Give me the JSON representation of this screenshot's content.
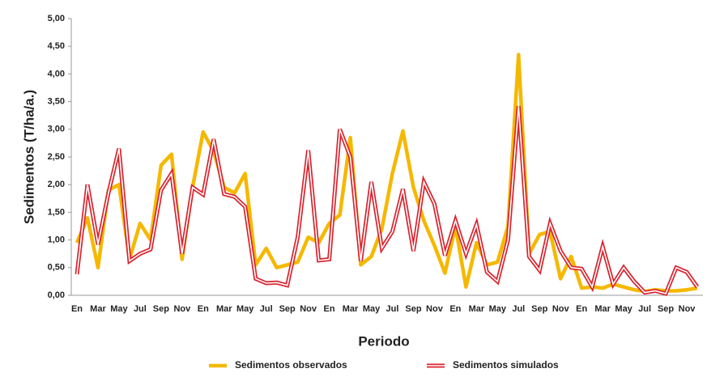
{
  "chart_data": {
    "type": "line",
    "y_label": "Sedimentos (T/ha/a.)",
    "x_label": "Periodo",
    "categories": [
      "En",
      null,
      "Mar",
      null,
      "May",
      null,
      "Jul",
      null,
      "Sep",
      null,
      "Nov",
      null,
      "En",
      null,
      "Mar",
      null,
      "May",
      null,
      "Jul",
      null,
      "Sep",
      null,
      "Nov",
      null,
      "En",
      null,
      "Mar",
      null,
      "May",
      null,
      "Jul",
      null,
      "Sep",
      null,
      "Nov",
      null,
      "En",
      null,
      "Mar",
      null,
      "May",
      null,
      "Jul",
      null,
      "Sep",
      null,
      "Nov",
      null,
      "En",
      null,
      "Mar",
      null,
      "May",
      null,
      "Jul",
      null,
      "Sep",
      null,
      "Nov",
      null
    ],
    "series": [
      {
        "name": "Sedimentos observados",
        "color": "#f5b800",
        "values": [
          0.95,
          1.4,
          0.5,
          1.9,
          2.0,
          0.65,
          1.3,
          1.0,
          2.35,
          2.55,
          0.65,
          1.95,
          2.95,
          2.6,
          1.95,
          1.85,
          2.2,
          0.55,
          0.85,
          0.5,
          0.55,
          0.6,
          1.05,
          0.95,
          1.3,
          1.45,
          2.85,
          0.55,
          0.7,
          1.2,
          2.2,
          2.97,
          1.95,
          1.35,
          0.9,
          0.4,
          1.25,
          0.15,
          0.95,
          0.55,
          0.6,
          1.25,
          4.35,
          0.75,
          1.1,
          1.15,
          0.3,
          0.7,
          0.13,
          0.15,
          0.13,
          0.2,
          0.15,
          0.1,
          0.07,
          0.1,
          0.08,
          0.08,
          0.1,
          0.13
        ]
      },
      {
        "name": "Sedimentos simulados",
        "color": "#d9232e",
        "values": [
          0.38,
          2.0,
          0.92,
          1.85,
          2.65,
          0.62,
          0.75,
          0.83,
          1.9,
          2.2,
          0.75,
          1.95,
          1.82,
          2.82,
          1.83,
          1.78,
          1.6,
          0.3,
          0.22,
          0.23,
          0.18,
          1.05,
          2.62,
          0.63,
          0.65,
          3.0,
          2.5,
          0.62,
          2.05,
          0.85,
          1.15,
          1.92,
          0.8,
          2.05,
          1.65,
          0.72,
          1.35,
          0.75,
          1.28,
          0.42,
          0.25,
          1.0,
          3.42,
          0.7,
          0.45,
          1.3,
          0.8,
          0.5,
          0.48,
          0.15,
          0.88,
          0.2,
          0.5,
          0.25,
          0.05,
          0.08,
          0.03,
          0.5,
          0.42,
          0.15
        ]
      }
    ],
    "ylim": [
      0,
      5
    ],
    "yticks": [
      {
        "value": 0,
        "label": "0,00"
      },
      {
        "value": 0.5,
        "label": "0,50"
      },
      {
        "value": 1,
        "label": "1,00"
      },
      {
        "value": 1.5,
        "label": "1,50"
      },
      {
        "value": 2,
        "label": "2,00"
      },
      {
        "value": 2.5,
        "label": "2,50"
      },
      {
        "value": 3,
        "label": "3,00"
      },
      {
        "value": 3.5,
        "label": "3,50"
      },
      {
        "value": 4,
        "label": "4,00"
      },
      {
        "value": 4.5,
        "label": "4,50"
      },
      {
        "value": 5,
        "label": "5,00"
      }
    ],
    "grid": false
  }
}
